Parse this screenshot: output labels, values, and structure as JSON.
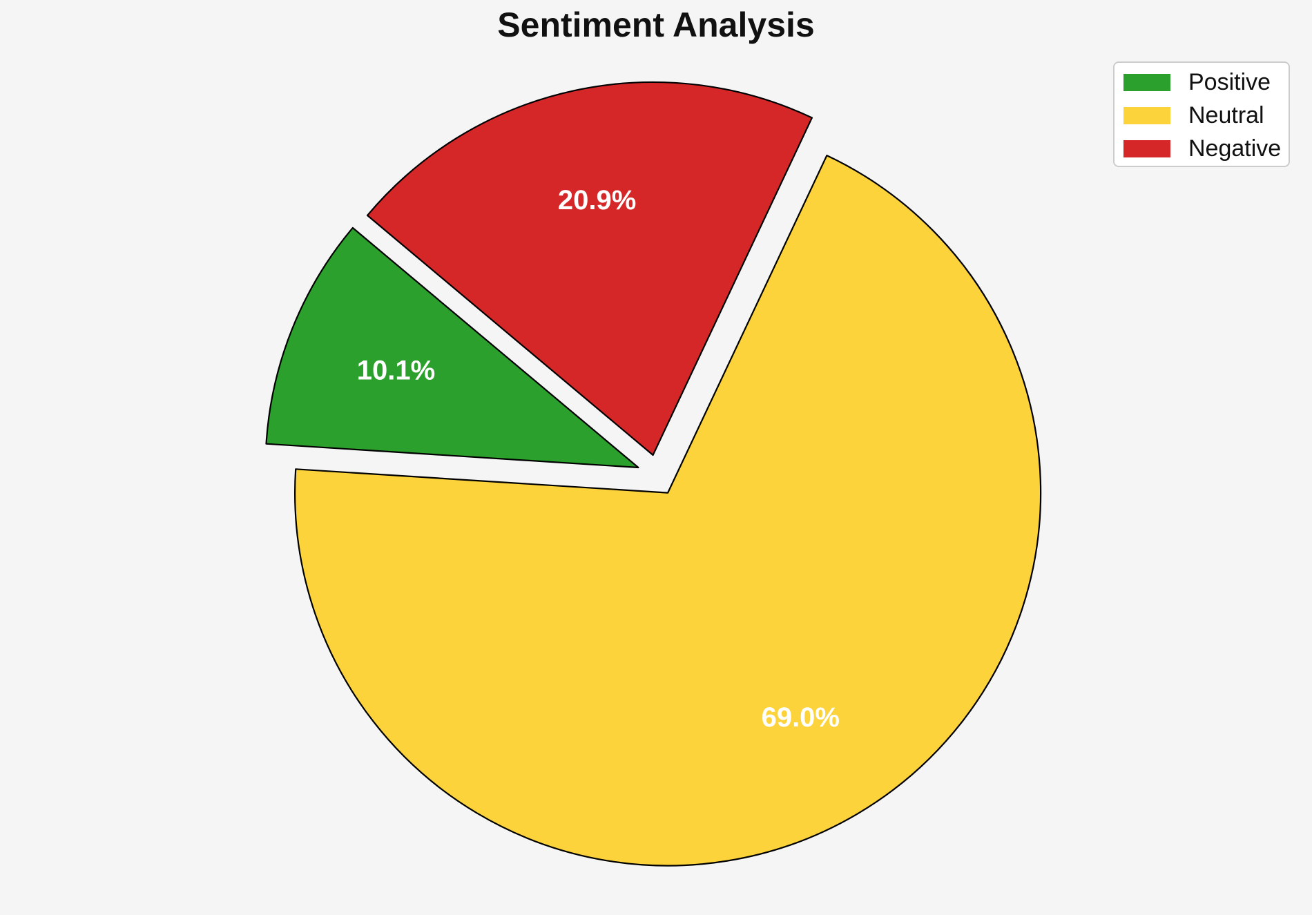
{
  "figure": {
    "background_color": "#f5f5f5"
  },
  "chart_data": {
    "type": "pie",
    "title": "Sentiment Analysis",
    "categories": [
      "Positive",
      "Neutral",
      "Negative"
    ],
    "values": [
      10.1,
      69.0,
      20.9
    ],
    "slices": [
      {
        "label": "Positive",
        "value": 10.1,
        "pct_label": "10.1%",
        "color": "#2ca02c"
      },
      {
        "label": "Neutral",
        "value": 69.0,
        "pct_label": "69.0%",
        "color": "#fdd33b"
      },
      {
        "label": "Negative",
        "value": 20.9,
        "pct_label": "20.9%",
        "color": "#d62728"
      }
    ],
    "start_angle_deg": 140,
    "direction": "counterclockwise",
    "explode_fraction": 0.055,
    "edge_color": "#000000",
    "pct_label_color": "#ffffff",
    "legend": {
      "position": "upper right",
      "items": [
        "Positive",
        "Neutral",
        "Negative"
      ]
    }
  }
}
